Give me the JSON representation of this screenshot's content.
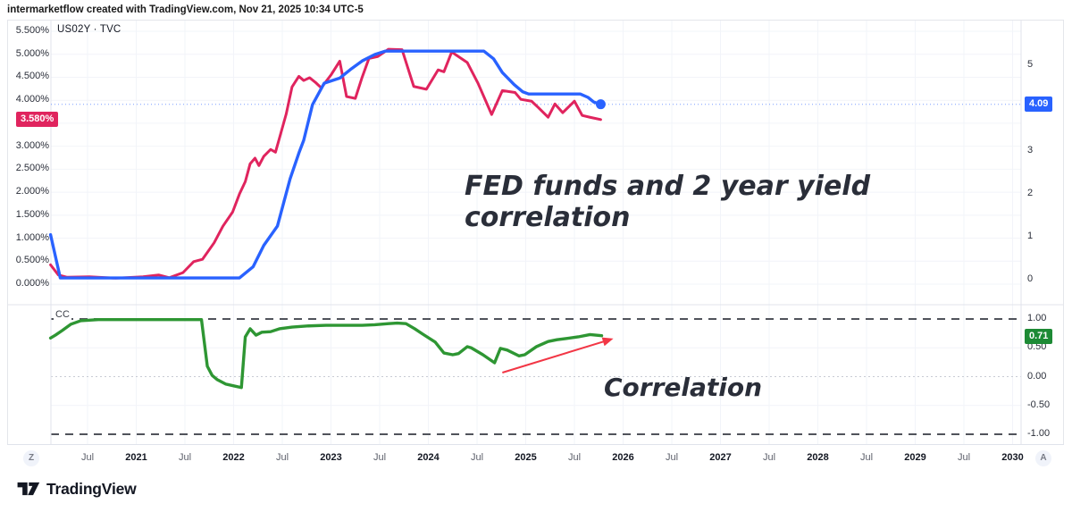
{
  "header": {
    "credit": "intermarketflow created with TradingView.com, Nov 21, 2025 10:34 UTC-5"
  },
  "top_pane": {
    "symbol_label": "US02Y · TVC",
    "price_label_red": "3.580%",
    "price_label_blue": "4.09"
  },
  "bottom_pane": {
    "indicator_label": "CC",
    "value_label": "0.71"
  },
  "annotations": {
    "main_line1": "FED funds and 2 year yield",
    "main_line2": "correlation",
    "corr_text": "Correlation"
  },
  "toolbar": {
    "z_button": "Z",
    "a_button": "A"
  },
  "footer": {
    "brand": "TradingView"
  },
  "colors": {
    "us02y": "#E0245E",
    "fed_funds": "#2962FF",
    "correlation": "#2E9633",
    "arrow": "#F23645",
    "grid": "#F2F4F9",
    "ref_dark": "#50535B",
    "ref_light": "#C8CBD4",
    "border": "#E0E3EB"
  },
  "x_axis": {
    "ticks": [
      {
        "t": 2020.5,
        "label": "Jul"
      },
      {
        "t": 2021,
        "label": "2021",
        "year": true
      },
      {
        "t": 2021.5,
        "label": "Jul"
      },
      {
        "t": 2022,
        "label": "2022",
        "year": true
      },
      {
        "t": 2022.5,
        "label": "Jul"
      },
      {
        "t": 2023,
        "label": "2023",
        "year": true
      },
      {
        "t": 2023.5,
        "label": "Jul"
      },
      {
        "t": 2024,
        "label": "2024",
        "year": true
      },
      {
        "t": 2024.5,
        "label": "Jul"
      },
      {
        "t": 2025,
        "label": "2025",
        "year": true
      },
      {
        "t": 2025.5,
        "label": "Jul"
      },
      {
        "t": 2026,
        "label": "2026",
        "year": true
      },
      {
        "t": 2026.5,
        "label": "Jul"
      },
      {
        "t": 2027,
        "label": "2027",
        "year": true
      },
      {
        "t": 2027.5,
        "label": "Jul"
      },
      {
        "t": 2028,
        "label": "2028",
        "year": true
      },
      {
        "t": 2028.5,
        "label": "Jul"
      },
      {
        "t": 2029,
        "label": "2029",
        "year": true
      },
      {
        "t": 2029.5,
        "label": "Jul"
      },
      {
        "t": 2030,
        "label": "2030",
        "year": true
      }
    ]
  },
  "chart_data": {
    "type": "line",
    "title": "FED funds and 2 year yield correlation",
    "x_range": [
      2020.1,
      2030.2
    ],
    "panes": [
      {
        "name": "price",
        "left_axis": {
          "min": 0,
          "max": 5.5,
          "format": "percent",
          "ticks": [
            {
              "v": 5.5,
              "label": "5.500%"
            },
            {
              "v": 5.0,
              "label": "5.000%"
            },
            {
              "v": 4.5,
              "label": "4.500%"
            },
            {
              "v": 4.0,
              "label": "4.000%"
            },
            {
              "v": 3.5,
              "label": "3.500%"
            },
            {
              "v": 3.0,
              "label": "3.000%"
            },
            {
              "v": 2.5,
              "label": "2.500%"
            },
            {
              "v": 2.0,
              "label": "2.000%"
            },
            {
              "v": 1.5,
              "label": "1.500%"
            },
            {
              "v": 1.0,
              "label": "1.000%"
            },
            {
              "v": 0.5,
              "label": "0.500%"
            },
            {
              "v": 0.0,
              "label": "0.000%"
            }
          ]
        },
        "right_axis": {
          "min": 0,
          "max": 5.6,
          "ticks": [
            {
              "v": 5,
              "label": "5"
            },
            {
              "v": 4,
              "label": "4"
            },
            {
              "v": 3,
              "label": "3"
            },
            {
              "v": 2,
              "label": "2"
            },
            {
              "v": 1,
              "label": "1"
            },
            {
              "v": 0,
              "label": "0"
            }
          ]
        },
        "price_line": {
          "value": 4.09,
          "axis": "right"
        },
        "series": [
          {
            "name": "US02Y · TVC",
            "axis": "left",
            "last_value": 3.58,
            "points": [
              [
                2020.12,
                0.42
              ],
              [
                2020.2,
                0.2
              ],
              [
                2020.29,
                0.15
              ],
              [
                2020.52,
                0.16
              ],
              [
                2020.79,
                0.13
              ],
              [
                2021.07,
                0.16
              ],
              [
                2021.23,
                0.2
              ],
              [
                2021.34,
                0.14
              ],
              [
                2021.48,
                0.25
              ],
              [
                2021.59,
                0.49
              ],
              [
                2021.68,
                0.54
              ],
              [
                2021.8,
                0.9
              ],
              [
                2021.89,
                1.26
              ],
              [
                2021.99,
                1.57
              ],
              [
                2022.06,
                1.96
              ],
              [
                2022.12,
                2.23
              ],
              [
                2022.17,
                2.62
              ],
              [
                2022.22,
                2.74
              ],
              [
                2022.26,
                2.58
              ],
              [
                2022.31,
                2.78
              ],
              [
                2022.38,
                2.93
              ],
              [
                2022.43,
                2.87
              ],
              [
                2022.47,
                3.17
              ],
              [
                2022.54,
                3.7
              ],
              [
                2022.6,
                4.29
              ],
              [
                2022.67,
                4.52
              ],
              [
                2022.72,
                4.43
              ],
              [
                2022.78,
                4.49
              ],
              [
                2022.84,
                4.39
              ],
              [
                2022.9,
                4.27
              ],
              [
                2023.0,
                4.55
              ],
              [
                2023.09,
                4.85
              ],
              [
                2023.16,
                4.08
              ],
              [
                2023.25,
                4.04
              ],
              [
                2023.32,
                4.5
              ],
              [
                2023.39,
                4.91
              ],
              [
                2023.48,
                4.95
              ],
              [
                2023.59,
                5.11
              ],
              [
                2023.73,
                5.1
              ],
              [
                2023.79,
                4.7
              ],
              [
                2023.85,
                4.3
              ],
              [
                2023.98,
                4.24
              ],
              [
                2024.1,
                4.66
              ],
              [
                2024.16,
                4.62
              ],
              [
                2024.24,
                5.05
              ],
              [
                2024.4,
                4.82
              ],
              [
                2024.51,
                4.37
              ],
              [
                2024.65,
                3.69
              ],
              [
                2024.76,
                4.21
              ],
              [
                2024.89,
                4.17
              ],
              [
                2024.95,
                4.02
              ],
              [
                2025.06,
                3.98
              ],
              [
                2025.13,
                3.84
              ],
              [
                2025.23,
                3.63
              ],
              [
                2025.3,
                3.92
              ],
              [
                2025.38,
                3.73
              ],
              [
                2025.5,
                3.98
              ],
              [
                2025.58,
                3.67
              ],
              [
                2025.66,
                3.63
              ],
              [
                2025.77,
                3.58
              ]
            ]
          },
          {
            "name": "Fed Funds",
            "axis": "right",
            "last_value": 4.09,
            "end_marker": true,
            "points": [
              [
                2020.12,
                1.05
              ],
              [
                2020.22,
                0.04
              ],
              [
                2022.06,
                0.04
              ],
              [
                2022.2,
                0.3
              ],
              [
                2022.31,
                0.8
              ],
              [
                2022.45,
                1.25
              ],
              [
                2022.58,
                2.35
              ],
              [
                2022.67,
                2.95
              ],
              [
                2022.72,
                3.25
              ],
              [
                2022.81,
                4.08
              ],
              [
                2022.93,
                4.58
              ],
              [
                2023.09,
                4.7
              ],
              [
                2023.2,
                4.9
              ],
              [
                2023.32,
                5.1
              ],
              [
                2023.45,
                5.25
              ],
              [
                2023.56,
                5.33
              ],
              [
                2024.57,
                5.33
              ],
              [
                2024.67,
                5.15
              ],
              [
                2024.76,
                4.83
              ],
              [
                2024.88,
                4.55
              ],
              [
                2024.97,
                4.38
              ],
              [
                2025.03,
                4.33
              ],
              [
                2025.56,
                4.33
              ],
              [
                2025.64,
                4.25
              ],
              [
                2025.7,
                4.14
              ],
              [
                2025.77,
                4.09
              ]
            ]
          }
        ]
      },
      {
        "name": "correlation",
        "right_axis": {
          "min": -1,
          "max": 1,
          "ticks": [
            {
              "v": 1,
              "label": "1.00"
            },
            {
              "v": 0.5,
              "label": "0.50"
            },
            {
              "v": 0,
              "label": "0.00"
            },
            {
              "v": -0.5,
              "label": "-0.50"
            },
            {
              "v": -1,
              "label": "-1.00"
            }
          ]
        },
        "reference_lines": [
          {
            "v": 1,
            "style": "dark-dash"
          },
          {
            "v": 0,
            "style": "light-dash"
          },
          {
            "v": -1,
            "style": "dark-dash"
          }
        ],
        "arrow": {
          "from": {
            "t": 2024.76,
            "v": 0.07
          },
          "to": {
            "t": 2025.9,
            "v": 0.66
          }
        },
        "series": [
          {
            "name": "CC",
            "last_value": 0.71,
            "points": [
              [
                2020.12,
                0.67
              ],
              [
                2020.17,
                0.72
              ],
              [
                2020.24,
                0.8
              ],
              [
                2020.33,
                0.91
              ],
              [
                2020.43,
                0.97
              ],
              [
                2020.61,
                0.99
              ],
              [
                2020.98,
                0.99
              ],
              [
                2021.34,
                0.99
              ],
              [
                2021.67,
                0.99
              ],
              [
                2021.73,
                0.18
              ],
              [
                2021.78,
                0.02
              ],
              [
                2021.83,
                -0.05
              ],
              [
                2021.92,
                -0.13
              ],
              [
                2022.0,
                -0.16
              ],
              [
                2022.08,
                -0.19
              ],
              [
                2022.12,
                0.69
              ],
              [
                2022.17,
                0.83
              ],
              [
                2022.23,
                0.72
              ],
              [
                2022.29,
                0.77
              ],
              [
                2022.38,
                0.78
              ],
              [
                2022.47,
                0.83
              ],
              [
                2022.6,
                0.86
              ],
              [
                2022.77,
                0.88
              ],
              [
                2022.95,
                0.89
              ],
              [
                2023.13,
                0.89
              ],
              [
                2023.32,
                0.89
              ],
              [
                2023.45,
                0.9
              ],
              [
                2023.59,
                0.92
              ],
              [
                2023.68,
                0.93
              ],
              [
                2023.77,
                0.92
              ],
              [
                2023.86,
                0.83
              ],
              [
                2023.94,
                0.74
              ],
              [
                2024.07,
                0.6
              ],
              [
                2024.16,
                0.41
              ],
              [
                2024.25,
                0.38
              ],
              [
                2024.31,
                0.4
              ],
              [
                2024.4,
                0.52
              ],
              [
                2024.44,
                0.5
              ],
              [
                2024.56,
                0.38
              ],
              [
                2024.68,
                0.24
              ],
              [
                2024.74,
                0.49
              ],
              [
                2024.81,
                0.46
              ],
              [
                2024.93,
                0.36
              ],
              [
                2024.99,
                0.38
              ],
              [
                2025.11,
                0.52
              ],
              [
                2025.23,
                0.61
              ],
              [
                2025.32,
                0.64
              ],
              [
                2025.41,
                0.66
              ],
              [
                2025.54,
                0.69
              ],
              [
                2025.66,
                0.73
              ],
              [
                2025.78,
                0.71
              ]
            ]
          }
        ]
      }
    ]
  }
}
